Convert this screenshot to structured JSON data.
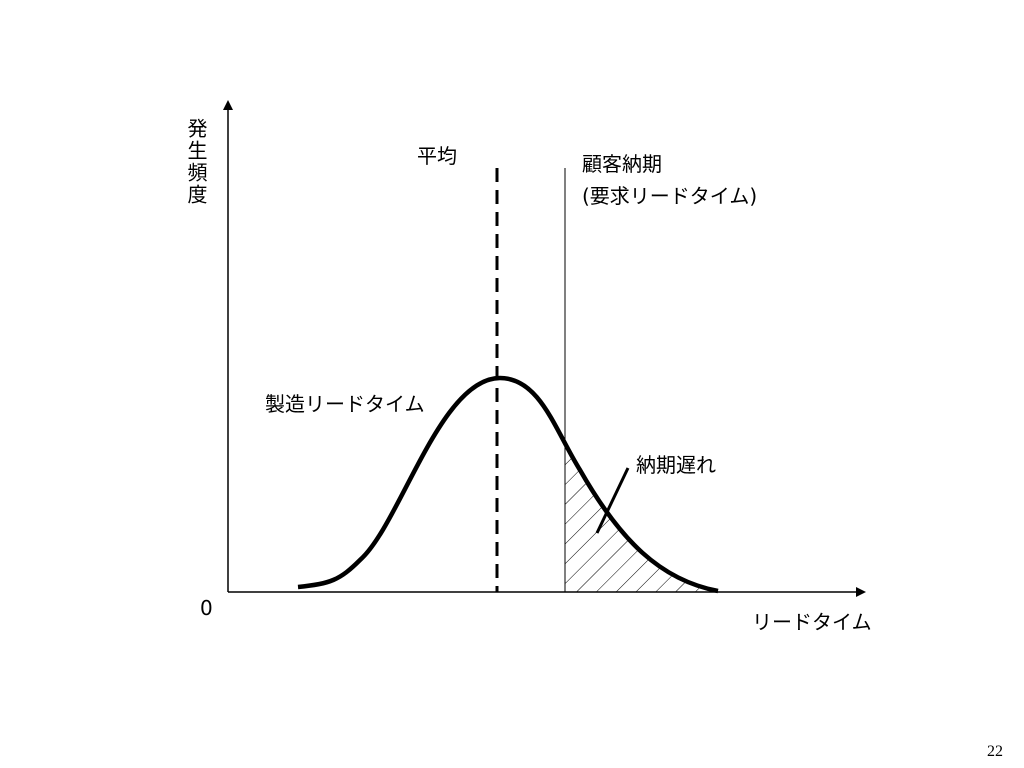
{
  "y_axis_label": "発生頻度",
  "mean_label": "平均",
  "due_date_label": "顧客納期",
  "due_date_sublabel": "(要求リードタイム)",
  "curve_label": "製造リードタイム",
  "late_label": "納期遅れ",
  "origin_label": "0",
  "x_axis_label": "リードタイム",
  "page_number": "22"
}
